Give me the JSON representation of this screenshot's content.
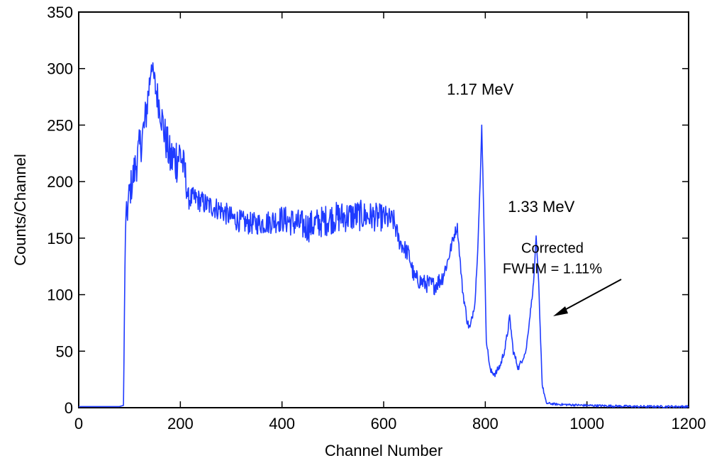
{
  "chart_data": {
    "type": "line",
    "title": "",
    "xlabel": "Channel Number",
    "ylabel": "Counts/Channel",
    "xlim": [
      0,
      1200
    ],
    "ylim": [
      0,
      350
    ],
    "x_ticks": [
      0,
      200,
      400,
      600,
      800,
      1000,
      1200
    ],
    "y_ticks": [
      0,
      50,
      100,
      150,
      200,
      250,
      300,
      350
    ],
    "x_tick_labels": [
      "0",
      "200",
      "400",
      "600",
      "800",
      "1000",
      "1200"
    ],
    "y_tick_labels": [
      "0",
      "50",
      "100",
      "150",
      "200",
      "250",
      "300",
      "350"
    ],
    "grid": false,
    "series": [
      {
        "color": "#1f3bff",
        "x": [
          0,
          80,
          88,
          92,
          100,
          110,
          120,
          130,
          140,
          143,
          150,
          160,
          170,
          180,
          190,
          200,
          210,
          215,
          230,
          250,
          280,
          300,
          330,
          360,
          400,
          450,
          500,
          550,
          600,
          620,
          630,
          650,
          660,
          680,
          700,
          715,
          725,
          740,
          745,
          755,
          765,
          770,
          780,
          785,
          790,
          793,
          797,
          802,
          810,
          820,
          830,
          840,
          848,
          855,
          865,
          880,
          895,
          900,
          905,
          912,
          920,
          940,
          1000,
          1100,
          1200
        ],
        "y": [
          1,
          1,
          2,
          160,
          190,
          210,
          230,
          250,
          290,
          305,
          285,
          265,
          240,
          220,
          220,
          225,
          205,
          185,
          185,
          180,
          175,
          168,
          163,
          163,
          167,
          160,
          168,
          170,
          168,
          165,
          148,
          135,
          115,
          110,
          108,
          115,
          128,
          155,
          160,
          105,
          75,
          70,
          95,
          140,
          200,
          250,
          170,
          60,
          32,
          30,
          38,
          55,
          80,
          50,
          35,
          50,
          110,
          152,
          110,
          20,
          4,
          3,
          2,
          1,
          1
        ],
        "noise": [
          0,
          0,
          0,
          15,
          15,
          18,
          18,
          20,
          15,
          5,
          15,
          15,
          18,
          20,
          25,
          20,
          15,
          10,
          10,
          10,
          10,
          10,
          10,
          10,
          12,
          14,
          14,
          14,
          12,
          10,
          8,
          8,
          8,
          8,
          8,
          8,
          6,
          5,
          4,
          4,
          4,
          4,
          3,
          2,
          2,
          0,
          2,
          2,
          3,
          3,
          3,
          4,
          3,
          3,
          3,
          2,
          2,
          0,
          2,
          2,
          1,
          1,
          1,
          1,
          1
        ]
      }
    ],
    "annotations": [
      {
        "text": "1.17 MeV",
        "x": 790,
        "y": 277
      },
      {
        "text": "1.33 MeV",
        "x": 910,
        "y": 173
      },
      {
        "text": "Corrected",
        "x": 932,
        "y": 137
      },
      {
        "text": "FWHM = 1.11%",
        "x": 932,
        "y": 119
      }
    ]
  }
}
